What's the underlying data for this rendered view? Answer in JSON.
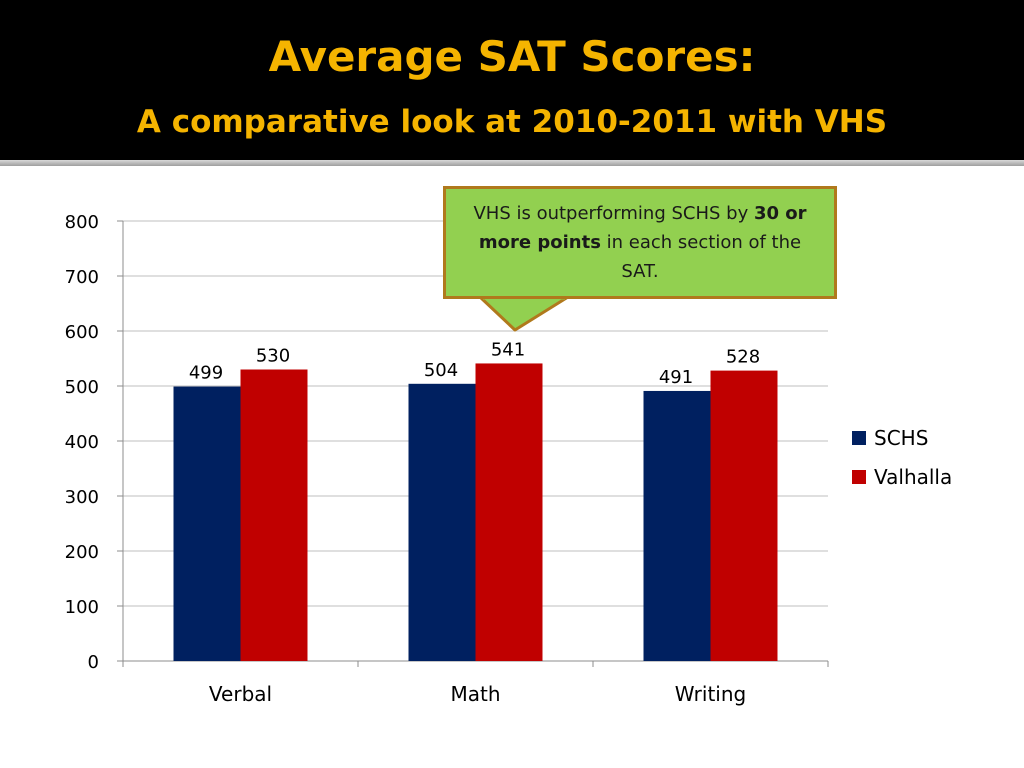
{
  "slide": {
    "title": "Average SAT Scores:",
    "subtitle": "A comparative look at 2010-2011 with VHS"
  },
  "callout": {
    "text_before": "VHS is outperforming SCHS by ",
    "text_bold": "30 or more points",
    "text_after": " in each section of the SAT.",
    "fill": "#92d050",
    "border": "#b0791c"
  },
  "chart_data": {
    "type": "bar",
    "categories": [
      "Verbal",
      "Math",
      "Writing"
    ],
    "series": [
      {
        "name": "SCHS",
        "values": [
          499,
          504,
          491
        ],
        "color": "#002060"
      },
      {
        "name": "Valhalla",
        "values": [
          530,
          541,
          528
        ],
        "color": "#c00000"
      }
    ],
    "ylim": [
      0,
      800
    ],
    "yticks": [
      0,
      100,
      200,
      300,
      400,
      500,
      600,
      700,
      800
    ],
    "grid": true,
    "legend": "right",
    "data_labels": true
  }
}
